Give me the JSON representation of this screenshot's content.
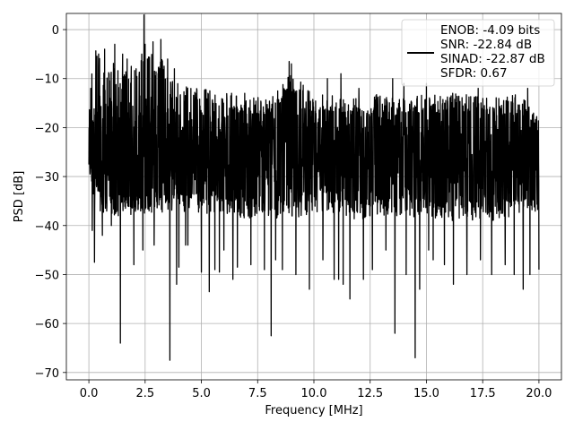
{
  "chart_data": {
    "type": "line",
    "title": "",
    "xlabel": "Frequency [MHz]",
    "ylabel": "PSD [dB]",
    "xlim": [
      -1.0,
      21.0
    ],
    "ylim": [
      -71.5,
      3.3
    ],
    "x_ticks": [
      0.0,
      2.5,
      5.0,
      7.5,
      10.0,
      12.5,
      15.0,
      17.5,
      20.0
    ],
    "x_tick_labels": [
      "0.0",
      "2.5",
      "5.0",
      "7.5",
      "10.0",
      "12.5",
      "15.0",
      "17.5",
      "20.0"
    ],
    "y_ticks": [
      0,
      -10,
      -20,
      -30,
      -40,
      -50,
      -60,
      -70
    ],
    "y_tick_labels": [
      "0",
      "−10",
      "−20",
      "−30",
      "−40",
      "−50",
      "−60",
      "−70"
    ],
    "grid": true,
    "legend_position": "top-right",
    "series": [
      {
        "name": "ENOB: -4.09 bits\nSNR: -22.84 dB\nSINAD: -22.87 dB\nSFDR: 0.67",
        "color": "#000000",
        "x_range": [
          0.0,
          20.0
        ],
        "baseline": -25.5,
        "envelope_upper": [
          [
            0.0,
            -14
          ],
          [
            0.15,
            -7
          ],
          [
            0.3,
            -2
          ],
          [
            0.5,
            -5
          ],
          [
            0.7,
            -9
          ],
          [
            1.0,
            -6
          ],
          [
            1.5,
            -9
          ],
          [
            2.5,
            -5
          ],
          [
            2.7,
            -3
          ],
          [
            3.0,
            -8
          ],
          [
            3.2,
            -5
          ],
          [
            3.5,
            -10
          ],
          [
            4.0,
            -11
          ],
          [
            5.0,
            -12
          ],
          [
            6.0,
            -13
          ],
          [
            7.0,
            -13
          ],
          [
            8.0,
            -14
          ],
          [
            9.0,
            -9
          ],
          [
            10.0,
            -13
          ],
          [
            11.0,
            -13
          ],
          [
            12.0,
            -14
          ],
          [
            13.0,
            -13
          ],
          [
            14.0,
            -14
          ],
          [
            15.0,
            -13
          ],
          [
            16.0,
            -13
          ],
          [
            17.0,
            -13
          ],
          [
            18.0,
            -14
          ],
          [
            19.0,
            -13
          ],
          [
            20.0,
            -17
          ]
        ],
        "envelope_lower": [
          [
            0.0,
            -28
          ],
          [
            0.5,
            -37
          ],
          [
            1.0,
            -38
          ],
          [
            2.0,
            -38
          ],
          [
            4.0,
            -37
          ],
          [
            6.0,
            -38
          ],
          [
            8.0,
            -39
          ],
          [
            10.0,
            -38
          ],
          [
            12.0,
            -39
          ],
          [
            14.0,
            -38
          ],
          [
            16.0,
            -39
          ],
          [
            18.0,
            -39
          ],
          [
            20.0,
            -37
          ]
        ],
        "spikes": [
          [
            0.25,
            0.0
          ],
          [
            0.7,
            -4.0
          ],
          [
            0.9,
            -9.0
          ],
          [
            1.0,
            -2.0
          ],
          [
            1.15,
            -3.0
          ],
          [
            1.5,
            -5.0
          ],
          [
            1.7,
            -6.0
          ],
          [
            2.0,
            -7.0
          ],
          [
            2.1,
            -8.0
          ],
          [
            2.35,
            -5.0
          ],
          [
            2.45,
            -6.0
          ],
          [
            2.5,
            -3.0
          ],
          [
            2.45,
            3.0
          ],
          [
            2.6,
            -6.0
          ],
          [
            2.85,
            -2.5
          ],
          [
            3.2,
            -2.0
          ],
          [
            3.5,
            -6.0
          ],
          [
            3.8,
            -8.0
          ],
          [
            4.0,
            -9.0
          ],
          [
            4.4,
            -8.0
          ],
          [
            5.8,
            -11.0
          ],
          [
            6.6,
            -11.0
          ],
          [
            8.9,
            -6.5
          ],
          [
            9.0,
            -7.0
          ],
          [
            10.6,
            -10.0
          ],
          [
            11.2,
            -9.0
          ],
          [
            12.0,
            -12.0
          ],
          [
            13.5,
            -10.0
          ],
          [
            14.0,
            -11.0
          ],
          [
            15.0,
            -11.0
          ],
          [
            16.2,
            -12.0
          ],
          [
            17.3,
            -12.0
          ],
          [
            18.5,
            -10.0
          ],
          [
            19.5,
            -12.0
          ],
          [
            0.15,
            -41.0
          ],
          [
            0.25,
            -47.5
          ],
          [
            0.6,
            -42.0
          ],
          [
            1.0,
            -40.0
          ],
          [
            1.4,
            -64.0
          ],
          [
            2.0,
            -48.0
          ],
          [
            2.4,
            -45.0
          ],
          [
            2.9,
            -44.0
          ],
          [
            3.6,
            -67.5
          ],
          [
            3.9,
            -45.0
          ],
          [
            4.3,
            -44.0
          ],
          [
            3.9,
            -52.0
          ],
          [
            4.0,
            -48.5
          ],
          [
            4.4,
            -44.0
          ],
          [
            5.0,
            -49.5
          ],
          [
            5.35,
            -53.5
          ],
          [
            5.6,
            -49.0
          ],
          [
            5.8,
            -49.5
          ],
          [
            6.0,
            -45.0
          ],
          [
            6.4,
            -51.0
          ],
          [
            6.6,
            -48.5
          ],
          [
            7.2,
            -48.0
          ],
          [
            7.8,
            -49.0
          ],
          [
            8.1,
            -62.5
          ],
          [
            8.3,
            -47.0
          ],
          [
            8.6,
            -49.0
          ],
          [
            9.2,
            -50.0
          ],
          [
            9.8,
            -53.0
          ],
          [
            10.4,
            -47.0
          ],
          [
            10.9,
            -51.0
          ],
          [
            11.1,
            -51.0
          ],
          [
            11.3,
            -52.0
          ],
          [
            11.6,
            -55.0
          ],
          [
            12.2,
            -51.0
          ],
          [
            12.6,
            -49.0
          ],
          [
            13.2,
            -45.0
          ],
          [
            13.6,
            -62.0
          ],
          [
            14.1,
            -50.0
          ],
          [
            14.5,
            -67.0
          ],
          [
            14.7,
            -53.0
          ],
          [
            15.1,
            -45.0
          ],
          [
            15.3,
            -47.0
          ],
          [
            15.8,
            -48.0
          ],
          [
            16.2,
            -52.0
          ],
          [
            16.8,
            -50.0
          ],
          [
            17.4,
            -47.0
          ],
          [
            17.9,
            -50.0
          ],
          [
            18.5,
            -48.0
          ],
          [
            18.9,
            -50.0
          ],
          [
            19.3,
            -53.0
          ],
          [
            19.6,
            -50.0
          ],
          [
            20.0,
            -49.0
          ]
        ]
      }
    ]
  }
}
